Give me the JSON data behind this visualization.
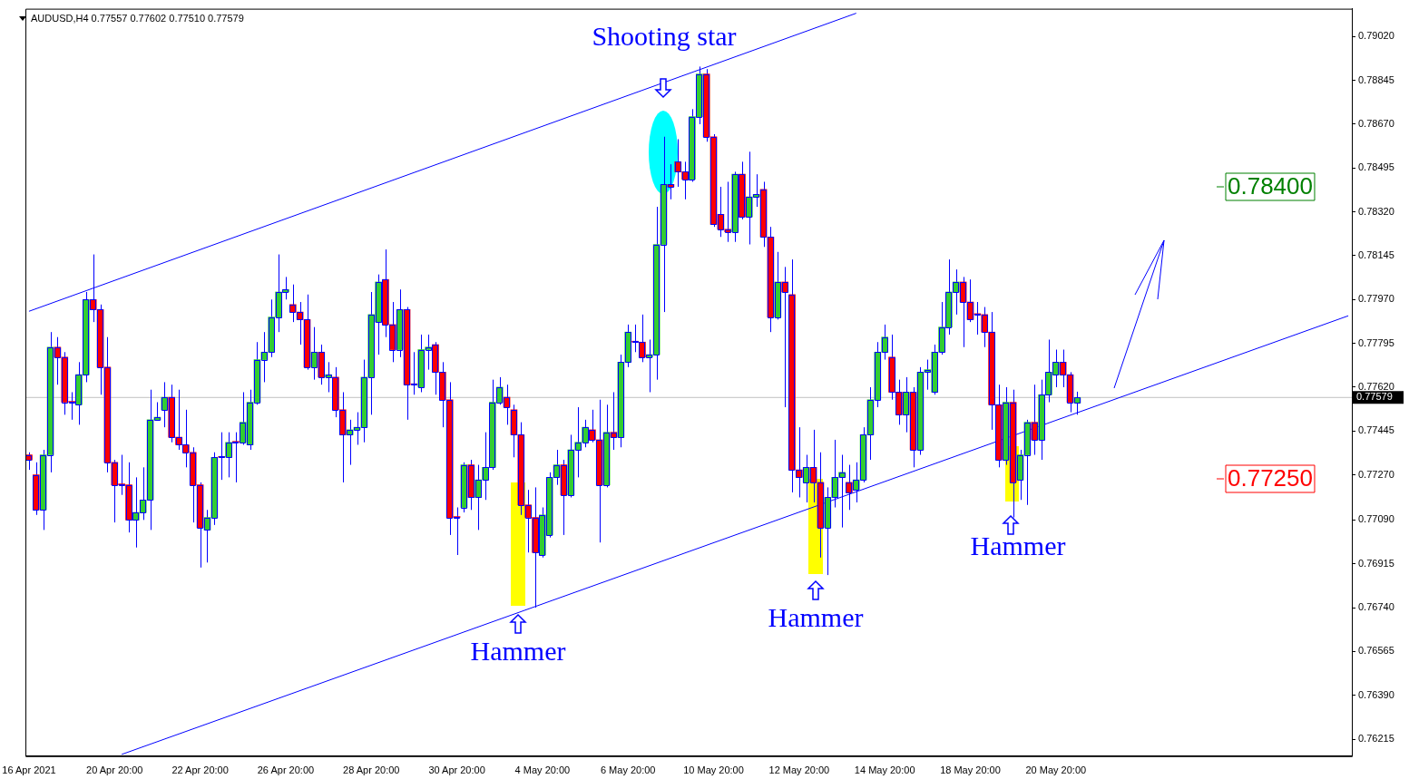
{
  "chart_data": {
    "type": "candlestick",
    "title": "AUDUSD,H4 0.77557 0.77602 0.77510 0.77579",
    "categories": [
      "16 Apr 2021",
      null,
      null,
      null,
      null,
      null,
      null,
      null,
      null,
      null,
      null,
      null,
      "20 Apr 20:00",
      null,
      null,
      null,
      null,
      null,
      null,
      null,
      null,
      null,
      null,
      null,
      "22 Apr 20:00",
      null,
      null,
      null,
      null,
      null,
      null,
      null,
      null,
      null,
      null,
      null,
      "26 Apr 20:00",
      null,
      null,
      null,
      null,
      null,
      null,
      null,
      null,
      null,
      null,
      null,
      "28 Apr 20:00",
      null,
      null,
      null,
      null,
      null,
      null,
      null,
      null,
      null,
      null,
      null,
      "30 Apr 20:00",
      null,
      null,
      null,
      null,
      null,
      null,
      null,
      null,
      null,
      null,
      null,
      "4 May 20:00",
      null,
      null,
      null,
      null,
      null,
      null,
      null,
      null,
      null,
      null,
      null,
      "6 May 20:00",
      null,
      null,
      null,
      null,
      null,
      null,
      null,
      null,
      null,
      null,
      null,
      "10 May 20:00",
      null,
      null,
      null,
      null,
      null,
      null,
      null,
      null,
      null,
      null,
      null,
      "12 May 20:00",
      null,
      null,
      null,
      null,
      null,
      null,
      null,
      null,
      null,
      null,
      null,
      "14 May 20:00",
      null,
      null,
      null,
      null,
      null,
      null,
      null,
      null,
      null,
      null,
      null,
      "18 May 20:00",
      null,
      null,
      null,
      null,
      null,
      null,
      null,
      null,
      null,
      null,
      null,
      "20 May 20:00",
      null,
      null,
      null,
      null,
      null,
      null,
      null,
      null,
      null,
      null,
      null,
      null,
      null,
      null,
      null,
      null,
      null,
      null,
      null,
      null,
      null,
      null,
      null,
      null,
      null,
      null,
      null,
      null,
      null,
      null,
      null,
      null,
      null,
      null,
      null,
      null,
      null,
      null,
      null,
      null,
      null
    ],
    "color": "#0000ff",
    "ohlc": [
      [
        0.7735,
        0.7736,
        0.7729,
        0.7733
      ],
      [
        0.7727,
        0.7732,
        0.7711,
        0.7713
      ],
      [
        0.7713,
        0.7737,
        0.7705,
        0.7735
      ],
      [
        0.7735,
        0.7784,
        0.7728,
        0.7778
      ],
      [
        0.7778,
        0.7782,
        0.7763,
        0.7774
      ],
      [
        0.7774,
        0.7776,
        0.7751,
        0.7756
      ],
      [
        0.7756,
        0.776,
        0.7749,
        0.7756
      ],
      [
        0.7755,
        0.7772,
        0.7747,
        0.7767
      ],
      [
        0.7767,
        0.78,
        0.7764,
        0.7797
      ],
      [
        0.7797,
        0.7815,
        0.7788,
        0.7793
      ],
      [
        0.7793,
        0.7795,
        0.7759,
        0.777
      ],
      [
        0.777,
        0.7782,
        0.7728,
        0.7732
      ],
      [
        0.7732,
        0.7733,
        0.7708,
        0.7723
      ],
      [
        0.7723,
        0.7735,
        0.7719,
        0.7723
      ],
      [
        0.7723,
        0.7732,
        0.7704,
        0.7709
      ],
      [
        0.7709,
        0.7726,
        0.7698,
        0.7712
      ],
      [
        0.7712,
        0.773,
        0.7709,
        0.7717
      ],
      [
        0.7717,
        0.7761,
        0.7705,
        0.7749
      ],
      [
        0.7749,
        0.7756,
        0.7749,
        0.775
      ],
      [
        0.7753,
        0.7764,
        0.7746,
        0.7758
      ],
      [
        0.7758,
        0.7763,
        0.774,
        0.7742
      ],
      [
        0.7742,
        0.7761,
        0.7737,
        0.7739
      ],
      [
        0.7739,
        0.7753,
        0.773,
        0.7736
      ],
      [
        0.7736,
        0.7738,
        0.7708,
        0.7723
      ],
      [
        0.7723,
        0.7724,
        0.769,
        0.7706
      ],
      [
        0.7705,
        0.7713,
        0.7692,
        0.771
      ],
      [
        0.771,
        0.7736,
        0.7707,
        0.7734
      ],
      [
        0.7734,
        0.7744,
        0.7725,
        0.7734
      ],
      [
        0.7734,
        0.7744,
        0.7726,
        0.774
      ],
      [
        0.774,
        0.7744,
        0.7724,
        0.774
      ],
      [
        0.774,
        0.776,
        0.7739,
        0.7748
      ],
      [
        0.7739,
        0.7761,
        0.7737,
        0.7756
      ],
      [
        0.7756,
        0.778,
        0.7755,
        0.7773
      ],
      [
        0.7773,
        0.7784,
        0.7764,
        0.7776
      ],
      [
        0.7776,
        0.7797,
        0.7774,
        0.779
      ],
      [
        0.779,
        0.7815,
        0.7784,
        0.78
      ],
      [
        0.78,
        0.7806,
        0.7797,
        0.7801
      ],
      [
        0.7795,
        0.7803,
        0.7788,
        0.7792
      ],
      [
        0.7792,
        0.7796,
        0.7779,
        0.7789
      ],
      [
        0.7789,
        0.7799,
        0.7769,
        0.777
      ],
      [
        0.777,
        0.7786,
        0.7765,
        0.7776
      ],
      [
        0.7776,
        0.7779,
        0.7763,
        0.7766
      ],
      [
        0.7766,
        0.7772,
        0.776,
        0.7767
      ],
      [
        0.7766,
        0.777,
        0.775,
        0.7753
      ],
      [
        0.7753,
        0.776,
        0.7724,
        0.7743
      ],
      [
        0.7743,
        0.7749,
        0.7731,
        0.7745
      ],
      [
        0.7745,
        0.7752,
        0.7739,
        0.7746
      ],
      [
        0.7746,
        0.7773,
        0.774,
        0.7766
      ],
      [
        0.7766,
        0.78,
        0.7751,
        0.7791
      ],
      [
        0.7788,
        0.7807,
        0.7775,
        0.7804
      ],
      [
        0.7805,
        0.7817,
        0.7782,
        0.7787
      ],
      [
        0.7787,
        0.7796,
        0.7772,
        0.7777
      ],
      [
        0.7777,
        0.7801,
        0.7774,
        0.7793
      ],
      [
        0.7793,
        0.7794,
        0.7749,
        0.7763
      ],
      [
        0.7763,
        0.7776,
        0.7759,
        0.7763
      ],
      [
        0.7762,
        0.7783,
        0.776,
        0.7777
      ],
      [
        0.7777,
        0.7783,
        0.7769,
        0.7778
      ],
      [
        0.7779,
        0.778,
        0.7759,
        0.7768
      ],
      [
        0.7768,
        0.7772,
        0.7746,
        0.7757
      ],
      [
        0.7757,
        0.7764,
        0.7703,
        0.771
      ],
      [
        0.771,
        0.7714,
        0.7695,
        0.771
      ],
      [
        0.7714,
        0.7732,
        0.7712,
        0.7731
      ],
      [
        0.7731,
        0.7733,
        0.7713,
        0.7718
      ],
      [
        0.7718,
        0.7731,
        0.7705,
        0.7725
      ],
      [
        0.7725,
        0.7744,
        0.7717,
        0.773
      ],
      [
        0.773,
        0.7765,
        0.7729,
        0.7756
      ],
      [
        0.7756,
        0.7766,
        0.7755,
        0.7762
      ],
      [
        0.7758,
        0.7763,
        0.7747,
        0.7754
      ],
      [
        0.7753,
        0.7755,
        0.7734,
        0.7743
      ],
      [
        0.7743,
        0.7748,
        0.7711,
        0.7715
      ],
      [
        0.7715,
        0.7721,
        0.7696,
        0.771
      ],
      [
        0.771,
        0.7722,
        0.7674,
        0.7696
      ],
      [
        0.7695,
        0.7714,
        0.7694,
        0.7711
      ],
      [
        0.7703,
        0.7728,
        0.7702,
        0.7726
      ],
      [
        0.7726,
        0.7737,
        0.7723,
        0.7731
      ],
      [
        0.7731,
        0.7733,
        0.7703,
        0.7719
      ],
      [
        0.7719,
        0.7743,
        0.7718,
        0.7737
      ],
      [
        0.7737,
        0.7754,
        0.7726,
        0.774
      ],
      [
        0.774,
        0.7749,
        0.7738,
        0.7746
      ],
      [
        0.7745,
        0.7753,
        0.774,
        0.7741
      ],
      [
        0.7741,
        0.7757,
        0.77,
        0.7723
      ],
      [
        0.7723,
        0.7755,
        0.7722,
        0.7744
      ],
      [
        0.7744,
        0.776,
        0.7737,
        0.7742
      ],
      [
        0.7742,
        0.7775,
        0.7738,
        0.7772
      ],
      [
        0.7772,
        0.7787,
        0.777,
        0.7784
      ],
      [
        0.778,
        0.7787,
        0.7776,
        0.778
      ],
      [
        0.778,
        0.7791,
        0.7772,
        0.7774
      ],
      [
        0.7774,
        0.7781,
        0.776,
        0.7775
      ],
      [
        0.7775,
        0.7834,
        0.7765,
        0.7819
      ],
      [
        0.7819,
        0.7862,
        0.7792,
        0.7843
      ],
      [
        0.7843,
        0.7851,
        0.7837,
        0.7842
      ],
      [
        0.7852,
        0.7861,
        0.7842,
        0.7848
      ],
      [
        0.7848,
        0.7852,
        0.7837,
        0.7845
      ],
      [
        0.7845,
        0.7873,
        0.7844,
        0.787
      ],
      [
        0.787,
        0.789,
        0.7867,
        0.7887
      ],
      [
        0.7887,
        0.7889,
        0.786,
        0.7862
      ],
      [
        0.7862,
        0.7863,
        0.7826,
        0.7827
      ],
      [
        0.7831,
        0.7842,
        0.7822,
        0.7825
      ],
      [
        0.7825,
        0.7844,
        0.782,
        0.7824
      ],
      [
        0.7824,
        0.7848,
        0.782,
        0.7847
      ],
      [
        0.7847,
        0.7852,
        0.7829,
        0.783
      ],
      [
        0.783,
        0.7856,
        0.7819,
        0.7838
      ],
      [
        0.7838,
        0.7847,
        0.7834,
        0.7839
      ],
      [
        0.7841,
        0.7844,
        0.7818,
        0.7822
      ],
      [
        0.7822,
        0.7826,
        0.7784,
        0.779
      ],
      [
        0.779,
        0.7816,
        0.7789,
        0.7804
      ],
      [
        0.7804,
        0.781,
        0.7754,
        0.78
      ],
      [
        0.7799,
        0.7813,
        0.772,
        0.7729
      ],
      [
        0.7729,
        0.7746,
        0.7718,
        0.7726
      ],
      [
        0.7724,
        0.7735,
        0.7716,
        0.773
      ],
      [
        0.773,
        0.7745,
        0.7716,
        0.7724
      ],
      [
        0.7724,
        0.7736,
        0.7694,
        0.7706
      ],
      [
        0.7706,
        0.7722,
        0.7687,
        0.7718
      ],
      [
        0.7718,
        0.7741,
        0.7714,
        0.7726
      ],
      [
        0.7726,
        0.7735,
        0.7706,
        0.7728
      ],
      [
        0.7724,
        0.7731,
        0.7713,
        0.772
      ],
      [
        0.7721,
        0.7732,
        0.7716,
        0.7725
      ],
      [
        0.7725,
        0.7746,
        0.7724,
        0.7743
      ],
      [
        0.7743,
        0.7762,
        0.7733,
        0.7757
      ],
      [
        0.7757,
        0.778,
        0.7754,
        0.7776
      ],
      [
        0.7776,
        0.7787,
        0.7773,
        0.7782
      ],
      [
        0.7774,
        0.7783,
        0.7757,
        0.776
      ],
      [
        0.776,
        0.7765,
        0.7747,
        0.7751
      ],
      [
        0.7751,
        0.7766,
        0.7744,
        0.776
      ],
      [
        0.776,
        0.7762,
        0.773,
        0.7737
      ],
      [
        0.7737,
        0.777,
        0.7735,
        0.7768
      ],
      [
        0.7768,
        0.7773,
        0.7761,
        0.7769
      ],
      [
        0.776,
        0.7779,
        0.7759,
        0.7776
      ],
      [
        0.7776,
        0.7796,
        0.7775,
        0.7786
      ],
      [
        0.7786,
        0.7813,
        0.7783,
        0.78
      ],
      [
        0.78,
        0.7809,
        0.7791,
        0.7804
      ],
      [
        0.7804,
        0.7806,
        0.7778,
        0.7796
      ],
      [
        0.7796,
        0.7805,
        0.7788,
        0.7789
      ],
      [
        0.7791,
        0.7796,
        0.7783,
        0.7791
      ],
      [
        0.7791,
        0.7794,
        0.7778,
        0.7784
      ],
      [
        0.7784,
        0.7792,
        0.7745,
        0.7755
      ],
      [
        0.7755,
        0.7763,
        0.773,
        0.7733
      ],
      [
        0.7733,
        0.7762,
        0.7731,
        0.7756
      ],
      [
        0.7756,
        0.7761,
        0.771,
        0.7724
      ],
      [
        0.7725,
        0.7737,
        0.7717,
        0.7735
      ],
      [
        0.7735,
        0.7749,
        0.7715,
        0.7748
      ],
      [
        0.7748,
        0.7763,
        0.7735,
        0.7741
      ],
      [
        0.7741,
        0.7765,
        0.7733,
        0.7759
      ],
      [
        0.7759,
        0.7781,
        0.7756,
        0.7768
      ],
      [
        0.7767,
        0.7777,
        0.7762,
        0.7772
      ],
      [
        0.7772,
        0.7777,
        0.7762,
        0.7767
      ],
      [
        0.7767,
        0.7768,
        0.7752,
        0.7756
      ],
      [
        0.77557,
        0.77602,
        0.7751,
        0.77579
      ],
      null,
      null,
      null,
      null,
      null,
      null,
      null,
      null,
      null,
      null,
      null,
      null,
      null,
      null,
      null,
      null,
      null,
      null,
      null,
      null,
      null,
      null,
      null,
      null,
      null,
      null,
      null,
      null,
      null,
      null,
      null,
      null,
      null,
      null,
      null,
      null,
      null,
      null
    ],
    "colors": [
      "#ff0000",
      "#ff0000",
      "#32cd32",
      "#32cd32",
      "#ff0000",
      "#ff0000",
      "#ff0000",
      "#32cd32",
      "#32cd32",
      "#ff0000",
      "#ff0000",
      "#ff0000",
      "#ff0000",
      "#ff0000",
      "#ff0000",
      "#32cd32",
      "#32cd32",
      "#32cd32",
      "#32cd32",
      "#32cd32",
      "#ff0000",
      "#ff0000",
      "#ff0000",
      "#ff0000",
      "#ff0000",
      "#32cd32",
      "#32cd32",
      "#ff0000",
      "#32cd32",
      "#ff0000",
      "#32cd32",
      "#32cd32",
      "#32cd32",
      "#32cd32",
      "#32cd32",
      "#32cd32",
      "#32cd32",
      "#ff0000",
      "#ff0000",
      "#ff0000",
      "#32cd32",
      "#ff0000",
      "#32cd32",
      "#ff0000",
      "#ff0000",
      "#32cd32",
      "#32cd32",
      "#32cd32",
      "#32cd32",
      "#32cd32",
      "#ff0000",
      "#ff0000",
      "#32cd32",
      "#ff0000",
      "#ff0000",
      "#32cd32",
      "#32cd32",
      "#ff0000",
      "#ff0000",
      "#ff0000",
      "#ff0000",
      "#32cd32",
      "#ff0000",
      "#32cd32",
      "#32cd32",
      "#32cd32",
      "#32cd32",
      "#ff0000",
      "#ff0000",
      "#ff0000",
      "#ff0000",
      "#ff0000",
      "#32cd32",
      "#32cd32",
      "#32cd32",
      "#ff0000",
      "#32cd32",
      "#32cd32",
      "#32cd32",
      "#ff0000",
      "#ff0000",
      "#32cd32",
      "#ff0000",
      "#32cd32",
      "#32cd32",
      "#ff0000",
      "#ff0000",
      "#32cd32",
      "#32cd32",
      "#32cd32",
      "#ff0000",
      "#ff0000",
      "#ff0000",
      "#32cd32",
      "#32cd32",
      "#ff0000",
      "#ff0000",
      "#ff0000",
      "#ff0000",
      "#32cd32",
      "#ff0000",
      "#32cd32",
      "#32cd32",
      "#ff0000",
      "#ff0000",
      "#32cd32",
      "#ff0000",
      "#ff0000",
      "#ff0000",
      "#32cd32",
      "#ff0000",
      "#ff0000",
      "#32cd32",
      "#32cd32",
      "#32cd32",
      "#ff0000",
      "#32cd32",
      "#32cd32",
      "#32cd32",
      "#32cd32",
      "#32cd32",
      "#ff0000",
      "#ff0000",
      "#32cd32",
      "#ff0000",
      "#32cd32",
      "#32cd32",
      "#32cd32",
      "#32cd32",
      "#32cd32",
      "#32cd32",
      "#ff0000",
      "#ff0000",
      "#ff0000",
      "#ff0000",
      "#ff0000",
      "#ff0000",
      "#32cd32",
      "#ff0000",
      "#32cd32",
      "#32cd32",
      "#ff0000",
      "#32cd32",
      "#32cd32",
      "#32cd32",
      "#ff0000",
      "#ff0000",
      "#32cd32",
      null,
      null,
      null,
      null,
      null,
      null,
      null,
      null,
      null,
      null,
      null,
      null,
      null,
      null,
      null,
      null,
      null,
      null,
      null,
      null,
      null,
      null,
      null,
      null,
      null,
      null,
      null,
      null,
      null,
      null,
      null,
      null,
      null,
      null,
      null,
      null,
      null,
      null
    ],
    "series": [
      {
        "type": "line",
        "color": "#0000ff",
        "values": [
          0.77923,
          null,
          null,
          null,
          null,
          null,
          null,
          null,
          null,
          null,
          null,
          null,
          null,
          null,
          null,
          null,
          null,
          null,
          null,
          null,
          null,
          null,
          null,
          null,
          null,
          null,
          null,
          null,
          null,
          null,
          null,
          null,
          null,
          null,
          null,
          null,
          null,
          null,
          null,
          null,
          null,
          null,
          null,
          null,
          null,
          null,
          null,
          null,
          null,
          null,
          null,
          null,
          null,
          null,
          null,
          null,
          null,
          null,
          null,
          null,
          null,
          null,
          null,
          null,
          null,
          null,
          null,
          null,
          null,
          null,
          null,
          null,
          null,
          null,
          null,
          null,
          null,
          null,
          null,
          null,
          null,
          null,
          null,
          null,
          null,
          null,
          null,
          null,
          null,
          null,
          null,
          null,
          null,
          null,
          null,
          null,
          null,
          null,
          null,
          null,
          null,
          null,
          null,
          null,
          null,
          null,
          null,
          null,
          null,
          null,
          null,
          null,
          null,
          null,
          null,
          null,
          0.79113,
          null,
          null,
          null,
          null,
          null,
          null,
          null,
          null,
          null,
          null,
          null,
          null,
          null,
          null,
          null,
          null,
          null,
          null,
          null,
          null,
          null,
          null,
          null,
          null,
          null,
          null,
          null,
          null,
          null,
          null,
          null,
          null,
          null,
          null,
          null,
          null,
          null,
          null,
          null,
          null,
          null,
          null,
          null,
          null,
          null,
          null,
          null,
          null,
          null,
          null,
          null,
          null,
          null,
          null,
          null,
          null,
          null,
          null,
          null,
          null,
          null,
          null,
          null,
          null,
          null,
          null,
          null,
          null,
          null
        ]
      },
      {
        "type": "line",
        "color": "#0000ff",
        "values": [
          null,
          null,
          null,
          null,
          null,
          null,
          null,
          null,
          null,
          null,
          null,
          null,
          null,
          0.76154,
          null,
          null,
          null,
          null,
          null,
          null,
          null,
          null,
          null,
          null,
          null,
          null,
          null,
          null,
          null,
          null,
          null,
          null,
          null,
          null,
          null,
          null,
          null,
          null,
          null,
          null,
          null,
          null,
          null,
          null,
          null,
          null,
          null,
          null,
          null,
          null,
          null,
          null,
          null,
          null,
          null,
          null,
          null,
          null,
          null,
          null,
          null,
          null,
          null,
          null,
          null,
          null,
          null,
          null,
          null,
          null,
          null,
          null,
          null,
          null,
          null,
          null,
          null,
          null,
          null,
          null,
          null,
          null,
          null,
          null,
          null,
          null,
          null,
          null,
          null,
          null,
          null,
          null,
          null,
          null,
          null,
          null,
          null,
          null,
          null,
          null,
          null,
          null,
          null,
          null,
          null,
          null,
          null,
          null,
          null,
          null,
          null,
          null,
          null,
          null,
          null,
          null,
          null,
          null,
          null,
          null,
          null,
          null,
          null,
          null,
          null,
          null,
          null,
          null,
          null,
          null,
          null,
          null,
          null,
          null,
          null,
          null,
          null,
          null,
          null,
          null,
          null,
          null,
          null,
          null,
          null,
          null,
          null,
          null,
          null,
          null,
          null,
          null,
          null,
          null,
          null,
          null,
          null,
          null,
          null,
          null,
          null,
          null,
          null,
          null,
          null,
          null,
          null,
          null,
          null,
          null,
          null,
          null,
          null,
          null,
          null,
          null,
          null,
          null,
          null,
          null,
          null,
          null,
          null,
          null,
          null,
          0.77905
        ]
      }
    ],
    "ylim": [
      0.76147,
      0.79131
    ],
    "yticks": [
      {
        "value": 0.7902,
        "label": "0.79020"
      },
      {
        "value": 0.78845,
        "label": "0.78845"
      },
      {
        "value": 0.7867,
        "label": "0.78670"
      },
      {
        "value": 0.78495,
        "label": "0.78495"
      },
      {
        "value": 0.7832,
        "label": "0.78320"
      },
      {
        "value": 0.78145,
        "label": "0.78145"
      },
      {
        "value": 0.7797,
        "label": "0.77970"
      },
      {
        "value": 0.77795,
        "label": "0.77795"
      },
      {
        "value": 0.7762,
        "label": "0.77620"
      },
      {
        "value": 0.77445,
        "label": "0.77445"
      },
      {
        "value": 0.7727,
        "label": "0.77270"
      },
      {
        "value": 0.7709,
        "label": "0.77090"
      },
      {
        "value": 0.76915,
        "label": "0.76915"
      },
      {
        "value": 0.7674,
        "label": "0.76740"
      },
      {
        "value": 0.76565,
        "label": "0.76565"
      },
      {
        "value": 0.7639,
        "label": "0.76390"
      },
      {
        "value": 0.76215,
        "label": "0.76215"
      }
    ],
    "ref_lines": [
      {
        "axis": "y",
        "value": 0.77579,
        "label": "0.77579",
        "color": "#c0c0c0"
      }
    ],
    "annotations": [
      "Shooting star",
      "Hammer",
      "Hammer",
      "Hammer",
      "0.78400",
      "0.77250"
    ],
    "legend": false
  }
}
